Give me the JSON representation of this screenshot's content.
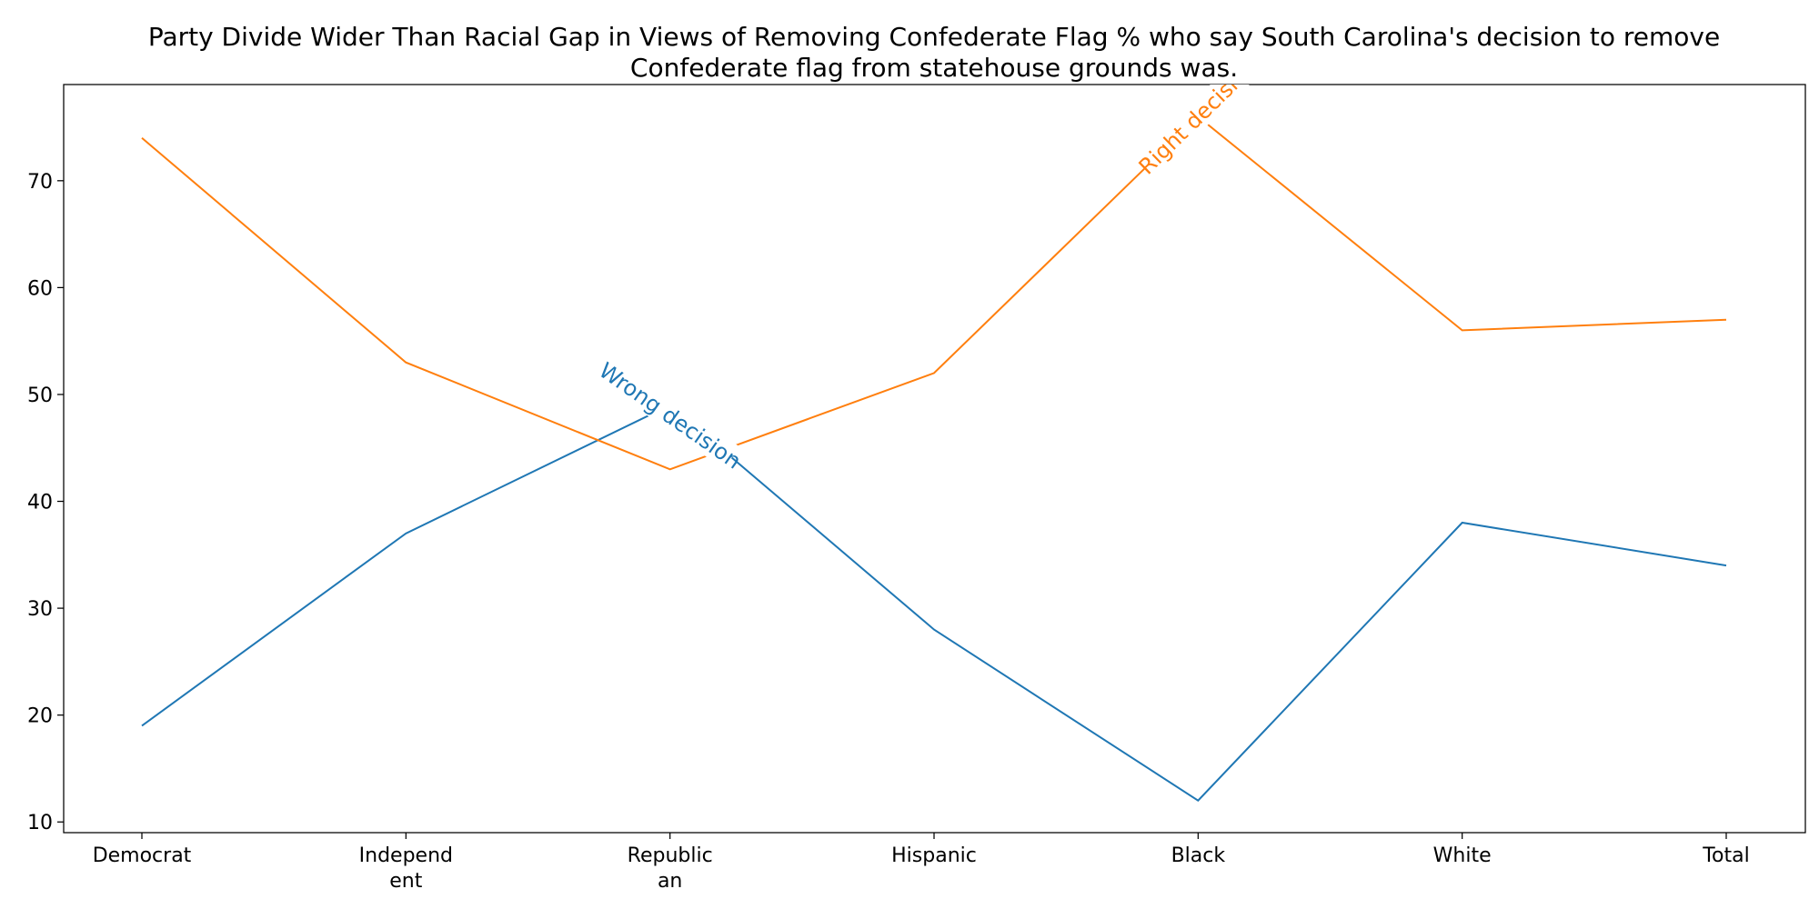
{
  "chart_data": {
    "type": "line",
    "title_lines": [
      "Party Divide Wider Than Racial Gap in Views of Removing Confederate Flag % who say South Carolina's decision to remove",
      "Confederate flag from statehouse grounds was."
    ],
    "categories": [
      [
        "Democrat"
      ],
      [
        "Independ",
        "ent"
      ],
      [
        "Republic",
        "an"
      ],
      [
        "Hispanic"
      ],
      [
        "Black"
      ],
      [
        "White"
      ],
      [
        "Total"
      ]
    ],
    "xlabel": "",
    "ylabel": "",
    "ylim": [
      9,
      79
    ],
    "yticks": [
      10,
      20,
      30,
      40,
      50,
      60,
      70
    ],
    "grid": false,
    "legend": "none",
    "series": [
      {
        "name": "Wrong decision",
        "color": "#1f77b4",
        "values": [
          19,
          37,
          49,
          28,
          12,
          38,
          34
        ],
        "label_anchor": {
          "category_index": 2.0,
          "y": 48
        }
      },
      {
        "name": "Right decision",
        "color": "#ff7f0e",
        "values": [
          74,
          53,
          43,
          52,
          76,
          56,
          57
        ],
        "label_anchor": {
          "category_index": 4.0,
          "y": 76
        }
      }
    ]
  }
}
